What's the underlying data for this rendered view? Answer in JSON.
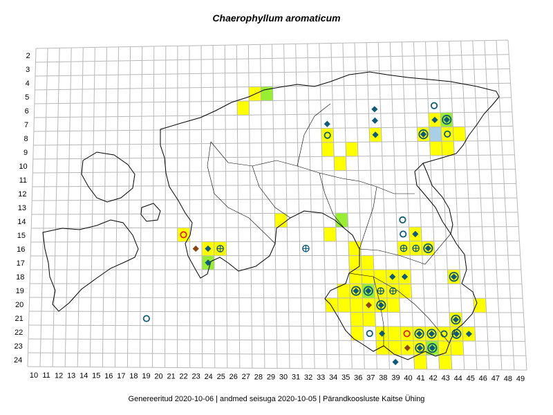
{
  "title": "Chaerophyllum aromaticum",
  "footer": "Genereeritud 2020-10-06  |  andmed seisuga 2020-10-05  |  Pärandkoosluste Kaitse Ühing",
  "grid": {
    "col_labels": [
      "10",
      "11",
      "12",
      "13",
      "14",
      "15",
      "16",
      "17",
      "18",
      "19",
      "20",
      "21",
      "22",
      "23",
      "24",
      "25",
      "26",
      "27",
      "28",
      "29",
      "30",
      "31",
      "32",
      "33",
      "34",
      "35",
      "36",
      "37",
      "38",
      "39",
      "40",
      "41",
      "42",
      "43",
      "44",
      "45",
      "46",
      "47",
      "48",
      "49"
    ],
    "row_labels": [
      "2",
      "3",
      "4",
      "5",
      "6",
      "7",
      "8",
      "9",
      "10",
      "11",
      "12",
      "13",
      "14",
      "15",
      "16",
      "17",
      "18",
      "19",
      "20",
      "21",
      "22",
      "23",
      "24"
    ]
  },
  "colors": {
    "yellow": "#ffff00",
    "green": "#99ee33",
    "lightblue": "#a8cfe6",
    "marker": "#0e5a78",
    "marker_brown": "#8b4513",
    "marker_red": "#dd2222",
    "gridline": "#b8b8b8",
    "coast": "#000000"
  },
  "cells": [
    {
      "c": 28,
      "r": 5,
      "f": "yellow"
    },
    {
      "c": 29,
      "r": 5,
      "f": "green"
    },
    {
      "c": 27,
      "r": 6,
      "f": "yellow"
    },
    {
      "c": 34,
      "r": 8,
      "f": "yellow"
    },
    {
      "c": 34,
      "r": 9,
      "f": "yellow"
    },
    {
      "c": 36,
      "r": 9,
      "f": "yellow"
    },
    {
      "c": 35,
      "r": 10,
      "f": "yellow"
    },
    {
      "c": 38,
      "r": 8,
      "f": "yellow"
    },
    {
      "c": 43,
      "r": 7,
      "f": "yellow"
    },
    {
      "c": 44,
      "r": 7,
      "f": "green"
    },
    {
      "c": 42,
      "r": 8,
      "f": "yellow"
    },
    {
      "c": 43,
      "r": 8,
      "f": "lightblue"
    },
    {
      "c": 44,
      "r": 8,
      "f": "yellow"
    },
    {
      "c": 45,
      "r": 8,
      "f": "yellow"
    },
    {
      "c": 43,
      "r": 9,
      "f": "yellow"
    },
    {
      "c": 44,
      "r": 9,
      "f": "yellow"
    },
    {
      "c": 30,
      "r": 14,
      "f": "yellow"
    },
    {
      "c": 35,
      "r": 14,
      "f": "green"
    },
    {
      "c": 34,
      "r": 15,
      "f": "yellow"
    },
    {
      "c": 22,
      "r": 15,
      "f": "yellow"
    },
    {
      "c": 24,
      "r": 16,
      "f": "yellow"
    },
    {
      "c": 25,
      "r": 16,
      "f": "yellow"
    },
    {
      "c": 24,
      "r": 17,
      "f": "green"
    },
    {
      "c": 41,
      "r": 15,
      "f": "yellow"
    },
    {
      "c": 36,
      "r": 16,
      "f": "yellow"
    },
    {
      "c": 40,
      "r": 16,
      "f": "yellow"
    },
    {
      "c": 41,
      "r": 16,
      "f": "yellow"
    },
    {
      "c": 42,
      "r": 16,
      "f": "yellow"
    },
    {
      "c": 36,
      "r": 17,
      "f": "yellow"
    },
    {
      "c": 37,
      "r": 17,
      "f": "yellow"
    },
    {
      "c": 36,
      "r": 18,
      "f": "yellow"
    },
    {
      "c": 37,
      "r": 18,
      "f": "yellow"
    },
    {
      "c": 38,
      "r": 18,
      "f": "yellow"
    },
    {
      "c": 39,
      "r": 18,
      "f": "yellow"
    },
    {
      "c": 40,
      "r": 18,
      "f": "yellow"
    },
    {
      "c": 44,
      "r": 18,
      "f": "yellow"
    },
    {
      "c": 35,
      "r": 19,
      "f": "yellow"
    },
    {
      "c": 36,
      "r": 19,
      "f": "yellow"
    },
    {
      "c": 37,
      "r": 19,
      "f": "green"
    },
    {
      "c": 38,
      "r": 19,
      "f": "yellow"
    },
    {
      "c": 39,
      "r": 19,
      "f": "yellow"
    },
    {
      "c": 40,
      "r": 19,
      "f": "yellow"
    },
    {
      "c": 34,
      "r": 20,
      "f": "yellow"
    },
    {
      "c": 35,
      "r": 20,
      "f": "yellow"
    },
    {
      "c": 36,
      "r": 20,
      "f": "yellow"
    },
    {
      "c": 37,
      "r": 20,
      "f": "yellow"
    },
    {
      "c": 38,
      "r": 20,
      "f": "yellow"
    },
    {
      "c": 39,
      "r": 20,
      "f": "yellow"
    },
    {
      "c": 46,
      "r": 20,
      "f": "yellow"
    },
    {
      "c": 36,
      "r": 21,
      "f": "yellow"
    },
    {
      "c": 37,
      "r": 21,
      "f": "yellow"
    },
    {
      "c": 44,
      "r": 21,
      "f": "yellow"
    },
    {
      "c": 36,
      "r": 22,
      "f": "yellow"
    },
    {
      "c": 38,
      "r": 22,
      "f": "yellow"
    },
    {
      "c": 39,
      "r": 22,
      "f": "yellow"
    },
    {
      "c": 40,
      "r": 22,
      "f": "yellow"
    },
    {
      "c": 41,
      "r": 22,
      "f": "yellow"
    },
    {
      "c": 42,
      "r": 22,
      "f": "yellow"
    },
    {
      "c": 43,
      "r": 22,
      "f": "yellow"
    },
    {
      "c": 44,
      "r": 22,
      "f": "yellow"
    },
    {
      "c": 45,
      "r": 22,
      "f": "yellow"
    },
    {
      "c": 38,
      "r": 23,
      "f": "yellow"
    },
    {
      "c": 39,
      "r": 23,
      "f": "yellow"
    },
    {
      "c": 40,
      "r": 23,
      "f": "yellow"
    },
    {
      "c": 41,
      "r": 23,
      "f": "yellow"
    },
    {
      "c": 42,
      "r": 23,
      "f": "green"
    },
    {
      "c": 43,
      "r": 23,
      "f": "yellow"
    },
    {
      "c": 44,
      "r": 23,
      "f": "yellow"
    },
    {
      "c": 41,
      "r": 24,
      "f": "yellow"
    },
    {
      "c": 43,
      "r": 24,
      "f": "yellow"
    }
  ],
  "markers": [
    {
      "c": 38,
      "r": 6.2,
      "s": "diamond"
    },
    {
      "c": 38,
      "r": 7,
      "s": "diamond"
    },
    {
      "c": 43,
      "r": 6,
      "s": "ring"
    },
    {
      "c": 43,
      "r": 7,
      "s": "diamond"
    },
    {
      "c": 44,
      "r": 7,
      "s": "ringdiamond"
    },
    {
      "c": 42,
      "r": 8,
      "s": "ringdiamond"
    },
    {
      "c": 44,
      "r": 8,
      "s": "ring"
    },
    {
      "c": 38,
      "r": 8,
      "s": "diamond"
    },
    {
      "c": 34,
      "r": 7.2,
      "s": "diamond"
    },
    {
      "c": 34,
      "r": 8,
      "s": "ring"
    },
    {
      "c": 22,
      "r": 15,
      "s": "ringred"
    },
    {
      "c": 23,
      "r": 16,
      "s": "diamondbrown"
    },
    {
      "c": 24,
      "r": 16,
      "s": "diamond"
    },
    {
      "c": 25,
      "r": 16,
      "s": "cross"
    },
    {
      "c": 24,
      "r": 17,
      "s": "diamond"
    },
    {
      "c": 32,
      "r": 16,
      "s": "cross"
    },
    {
      "c": 40,
      "r": 14,
      "s": "ring"
    },
    {
      "c": 40,
      "r": 15,
      "s": "ring"
    },
    {
      "c": 41,
      "r": 15,
      "s": "diamond"
    },
    {
      "c": 40,
      "r": 16,
      "s": "cross"
    },
    {
      "c": 41,
      "r": 16,
      "s": "cross"
    },
    {
      "c": 42,
      "r": 16,
      "s": "ringdiamond"
    },
    {
      "c": 39,
      "r": 18,
      "s": "diamond"
    },
    {
      "c": 40,
      "r": 18,
      "s": "diamond"
    },
    {
      "c": 44,
      "r": 18,
      "s": "ringdiamond"
    },
    {
      "c": 36,
      "r": 19,
      "s": "ringdiamond"
    },
    {
      "c": 37,
      "r": 19,
      "s": "ringdiamond"
    },
    {
      "c": 38,
      "r": 19,
      "s": "cross"
    },
    {
      "c": 39,
      "r": 19,
      "s": "cross"
    },
    {
      "c": 37,
      "r": 20,
      "s": "diamondbrown"
    },
    {
      "c": 38,
      "r": 20,
      "s": "ringdiamond"
    },
    {
      "c": 44,
      "r": 21,
      "s": "ringdiamond"
    },
    {
      "c": 19,
      "r": 21,
      "s": "ring"
    },
    {
      "c": 37,
      "r": 22,
      "s": "ring"
    },
    {
      "c": 38,
      "r": 22,
      "s": "diamond"
    },
    {
      "c": 40,
      "r": 22,
      "s": "ringred"
    },
    {
      "c": 41,
      "r": 22,
      "s": "ringdiamond"
    },
    {
      "c": 42,
      "r": 22,
      "s": "ringdiamond"
    },
    {
      "c": 43,
      "r": 22,
      "s": "ring"
    },
    {
      "c": 44,
      "r": 22,
      "s": "ringdiamond"
    },
    {
      "c": 45,
      "r": 22,
      "s": "diamond"
    },
    {
      "c": 40,
      "r": 23,
      "s": "diamondbrown"
    },
    {
      "c": 41,
      "r": 23,
      "s": "ringdiamond"
    },
    {
      "c": 42,
      "r": 23,
      "s": "ringdiamond"
    },
    {
      "c": 39,
      "r": 24,
      "s": "diamond"
    }
  ]
}
